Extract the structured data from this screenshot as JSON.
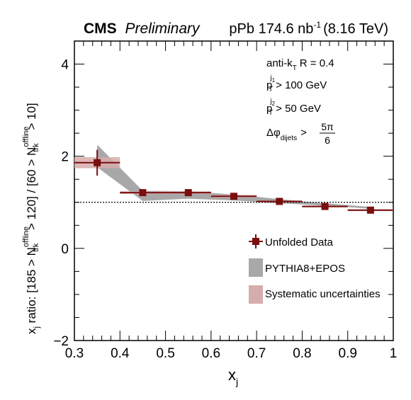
{
  "header": {
    "experiment": "CMS",
    "status": "Preliminary",
    "lumi_prefix": "pPb 174.6 nb",
    "lumi_exponent": "-1",
    "energy": "(8.16 TeV)"
  },
  "annotations": {
    "algo_prefix": "anti-k",
    "algo_sub": "T",
    "algo_rest": "R = 0.4",
    "pt1_main": "p",
    "pt1_sub": "T",
    "pt1_sup": "j",
    "pt1_supsub": "1",
    "pt1_cut": "> 100 GeV",
    "pt2_main": "p",
    "pt2_sub": "T",
    "pt2_sup": "j",
    "pt2_supsub": "2",
    "pt2_cut": "> 50 GeV",
    "dphi_main": "Δφ",
    "dphi_sub": "dijets",
    "dphi_gt": ">",
    "dphi_num": "5π",
    "dphi_den": "6"
  },
  "axes": {
    "xlabel_main": "x",
    "xlabel_sub": "j",
    "ylabel": {
      "p1": "x",
      "p1_sub": "j",
      "p2": " ratio: [185 > N",
      "p2_sup": "offline",
      "p2_sub": "trk",
      "p3": " > 120] / [60 > N",
      "p3_sup": "offline",
      "p3_sub": "trk",
      "p4": " > 10]"
    }
  },
  "legend": {
    "data": "Unfolded Data",
    "mc": "PYTHIA8+EPOS",
    "syst": "Systematic uncertainties"
  },
  "colors": {
    "data": "#7a0f0f",
    "mc_band": "#a8a8a8",
    "syst_band": "#d6adad",
    "reference_line": "#000000"
  },
  "chart_data": {
    "type": "scatter",
    "xlim": [
      0.3,
      1.0
    ],
    "ylim": [
      -2,
      4.5
    ],
    "xticks": [
      "0.3",
      "0.4",
      "0.5",
      "0.6",
      "0.7",
      "0.8",
      "0.9",
      "1"
    ],
    "yticks": [
      "−2",
      "0",
      "2",
      "4"
    ],
    "x_tick_values": [
      0.3,
      0.4,
      0.5,
      0.6,
      0.7,
      0.8,
      0.9,
      1.0
    ],
    "y_tick_values": [
      -2,
      0,
      2,
      4
    ],
    "reference_y": 1.0,
    "series": [
      {
        "name": "Unfolded Data",
        "x": [
          0.35,
          0.45,
          0.55,
          0.65,
          0.75,
          0.85,
          0.95
        ],
        "x_halfwidth": [
          0.05,
          0.05,
          0.05,
          0.05,
          0.05,
          0.05,
          0.05
        ],
        "y": [
          1.86,
          1.21,
          1.21,
          1.13,
          1.02,
          0.91,
          0.83
        ],
        "y_stat": [
          0.28,
          0.06,
          0.05,
          0.04,
          0.04,
          0.03,
          0.03
        ],
        "y_syst": [
          0.12,
          0.03,
          0.03,
          0.03,
          0.02,
          0.02,
          0.02
        ]
      },
      {
        "name": "PYTHIA8+EPOS",
        "x": [
          0.35,
          0.45,
          0.55,
          0.65,
          0.75,
          0.85,
          0.95
        ],
        "y_low": [
          1.76,
          1.03,
          1.08,
          1.04,
          0.98,
          0.93,
          0.86
        ],
        "y_high": [
          2.25,
          1.25,
          1.24,
          1.17,
          1.07,
          0.98,
          0.9
        ]
      }
    ]
  }
}
